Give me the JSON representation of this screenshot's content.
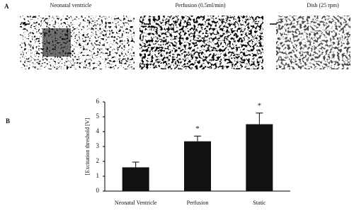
{
  "panel_a": {
    "label": "A",
    "images": [
      {
        "caption": "Neonatal ventricle"
      },
      {
        "caption": "Perfusion (0.5ml/min)"
      },
      {
        "caption": "Dish (25 rpm)"
      }
    ]
  },
  "chart_data": {
    "type": "bar",
    "panel_label": "B",
    "y_label": "[Excitation threshold [V]",
    "categories": [
      "Neonatal Ventricle",
      "Perfusion",
      "Static"
    ],
    "values": [
      1.6,
      3.35,
      4.5
    ],
    "errors": [
      0.35,
      0.35,
      0.75
    ],
    "color": "#111111",
    "annotations": [
      {
        "category": "Perfusion",
        "text": "*"
      },
      {
        "category": "Static",
        "text": "*"
      }
    ],
    "ylim": [
      0,
      6
    ],
    "yticks": [
      0,
      1,
      2,
      3,
      4,
      5,
      6
    ],
    "grid": false
  }
}
